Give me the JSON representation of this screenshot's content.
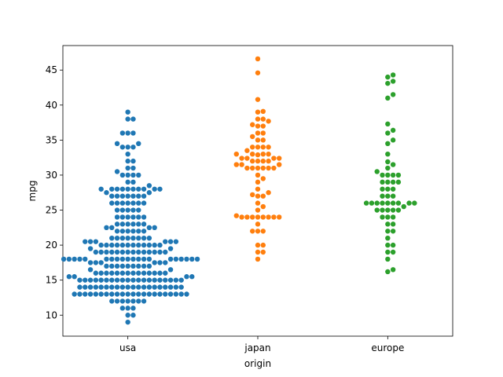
{
  "chart_data": {
    "type": "scatter",
    "subtype": "swarm",
    "title": "",
    "xlabel": "origin",
    "ylabel": "mpg",
    "categories": [
      "usa",
      "japan",
      "europe"
    ],
    "ylim": [
      7,
      48.5
    ],
    "yticks": [
      10,
      15,
      20,
      25,
      30,
      35,
      40,
      45
    ],
    "grid": false,
    "series": [
      {
        "category": "usa",
        "color": "#1f77b4",
        "values": [
          9,
          10,
          10,
          11,
          11,
          11,
          12,
          12,
          12,
          12,
          12,
          12,
          12,
          13,
          13,
          13,
          13,
          13,
          13,
          13,
          13,
          13,
          13,
          13,
          13,
          13,
          13,
          13,
          13,
          13,
          13,
          13,
          13,
          13,
          13,
          14,
          14,
          14,
          14,
          14,
          14,
          14,
          14,
          14,
          14,
          14,
          14,
          14,
          14,
          14,
          14,
          14,
          14,
          14,
          14,
          15,
          15,
          15,
          15,
          15,
          15,
          15,
          15,
          15,
          15,
          15,
          15,
          15,
          15,
          15,
          15,
          15,
          15,
          15,
          15,
          15.5,
          15.5,
          15.5,
          15.5,
          16,
          16,
          16,
          16,
          16,
          16,
          16,
          16,
          16,
          16,
          16,
          16,
          16,
          16,
          16.5,
          16.5,
          17,
          17,
          17,
          17,
          17,
          17,
          17,
          17,
          17,
          17.5,
          17.5,
          17.5,
          17.5,
          17.5,
          17.5,
          18,
          18,
          18,
          18,
          18,
          18,
          18,
          18,
          18,
          18,
          18,
          18,
          18,
          18,
          18,
          18,
          18,
          18,
          18,
          18,
          19,
          19,
          19,
          19,
          19,
          19,
          19,
          19,
          19,
          19,
          19,
          19,
          19,
          19,
          19.5,
          19.5,
          20,
          20,
          20,
          20,
          20,
          20,
          20,
          20,
          20,
          20,
          20,
          20,
          20.5,
          20.5,
          20.5,
          20.5,
          20.5,
          20.5,
          21,
          21,
          21,
          21,
          21,
          21,
          21,
          21,
          22,
          22,
          22,
          22,
          22,
          22,
          22.5,
          22.5,
          22.5,
          22.5,
          23,
          23,
          23,
          23,
          23,
          23,
          24,
          24,
          24,
          24,
          24,
          24,
          25,
          25,
          25,
          25,
          25,
          26,
          26,
          26,
          26,
          26,
          26,
          26,
          27,
          27,
          27,
          27,
          27,
          27,
          27,
          27.5,
          27.5,
          28,
          28,
          28,
          28,
          28,
          28,
          28,
          28,
          28,
          28,
          28.5,
          29,
          29,
          30,
          30,
          30,
          30,
          30.5,
          31,
          31,
          32,
          32,
          33,
          34,
          34,
          34,
          34.5,
          34.5,
          36,
          36,
          36,
          38,
          38,
          39
        ]
      },
      {
        "category": "japan",
        "color": "#ff7f0e",
        "values": [
          18,
          19,
          19,
          20,
          20,
          22,
          22,
          22,
          23,
          24,
          24,
          24,
          24,
          24,
          24,
          24,
          24,
          24.2,
          25,
          25.5,
          26,
          27,
          27,
          27.2,
          27.5,
          28,
          29,
          29.5,
          30,
          31,
          31,
          31,
          31,
          31,
          31,
          31.5,
          31.5,
          31.5,
          32,
          32,
          32,
          32,
          32.4,
          32.4,
          32.4,
          32.4,
          32.9,
          33,
          33,
          33,
          33,
          33.5,
          34,
          34,
          34,
          34,
          35,
          35,
          35.5,
          36,
          36,
          37,
          37,
          37.2,
          37.7,
          38,
          38,
          39,
          39.1,
          40.8,
          44.6,
          46.6
        ]
      },
      {
        "category": "europe",
        "color": "#2ca02c",
        "values": [
          16.2,
          16.5,
          18,
          19,
          19,
          20,
          20,
          21,
          22,
          22,
          23,
          23,
          24,
          24,
          24,
          25,
          25,
          25,
          25,
          25,
          25.5,
          26,
          26,
          26,
          26,
          26,
          26,
          26,
          26,
          26,
          27,
          27,
          27,
          28,
          28,
          28,
          29,
          29,
          29,
          29,
          30,
          30,
          30,
          30,
          30.5,
          31,
          31.5,
          31.9,
          33,
          34.5,
          35,
          36,
          36.4,
          37.3,
          41,
          41.5,
          43.1,
          43.4,
          44,
          44.3
        ]
      }
    ]
  }
}
